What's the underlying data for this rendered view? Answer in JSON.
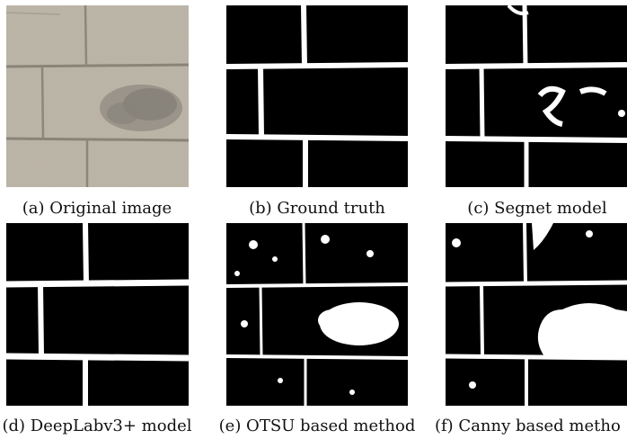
{
  "figure": {
    "panels": [
      {
        "id": "a",
        "caption": "(a) Original image"
      },
      {
        "id": "b",
        "caption": "(b) Ground truth"
      },
      {
        "id": "c",
        "caption": "(c) Segnet model"
      },
      {
        "id": "d",
        "caption": "(d) DeepLabv3+ model"
      },
      {
        "id": "e",
        "caption": "(e) OTSU based method"
      },
      {
        "id": "f",
        "caption": "(f) Canny based metho"
      }
    ],
    "colors": {
      "brick_surface": "#b9b2a3",
      "mortar_line": "#8a8478",
      "mask_background": "#000000",
      "mask_foreground": "#ffffff"
    }
  }
}
